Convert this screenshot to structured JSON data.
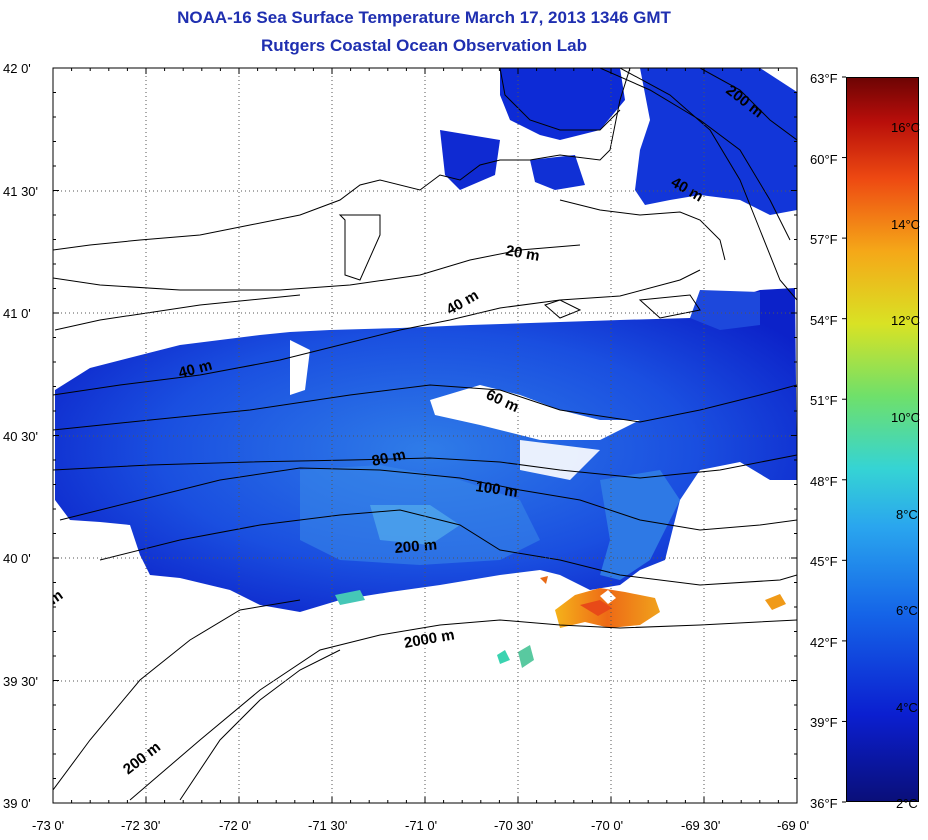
{
  "header": {
    "title": "NOAA-16 Sea Surface Temperature March 17, 2013 1346 GMT",
    "subtitle": "Rutgers Coastal Ocean Observation Lab"
  },
  "map": {
    "lon_range": [
      -73.0,
      -69.0
    ],
    "lat_range": [
      39.0,
      42.0
    ],
    "lat_labels": [
      "42 0'",
      "41 30'",
      "41 0'",
      "40 30'",
      "40 0'",
      "39 30'",
      "39 0'"
    ],
    "lon_labels": [
      "-73 0'",
      "-72 30'",
      "-72 0'",
      "-71 30'",
      "-71 0'",
      "-70 30'",
      "-70 0'",
      "-69 30'",
      "-69 0'"
    ],
    "grid": "dotted",
    "isobath_labels": [
      "200 m",
      "40 m",
      "20 m",
      "40 m",
      "40 m",
      "60 m",
      "80 m",
      "100 m",
      "200 m",
      "2000 m",
      "200 m",
      "m"
    ],
    "colors": {
      "land": "#ffffff",
      "cold": "#0a1fd4",
      "mid": "#2e7de6",
      "warm": "#f59a14",
      "hot": "#e8401a"
    }
  },
  "colorbar": {
    "fahrenheit_labels": [
      "63°F",
      "60°F",
      "57°F",
      "54°F",
      "51°F",
      "48°F",
      "45°F",
      "42°F",
      "39°F",
      "36°F"
    ],
    "celsius_labels": [
      "16°C",
      "14°C",
      "12°C",
      "10°C",
      "8°C",
      "6°C",
      "4°C",
      "2°C"
    ],
    "range_f": [
      36,
      63
    ],
    "range_c": [
      2.2,
      17.2
    ]
  }
}
